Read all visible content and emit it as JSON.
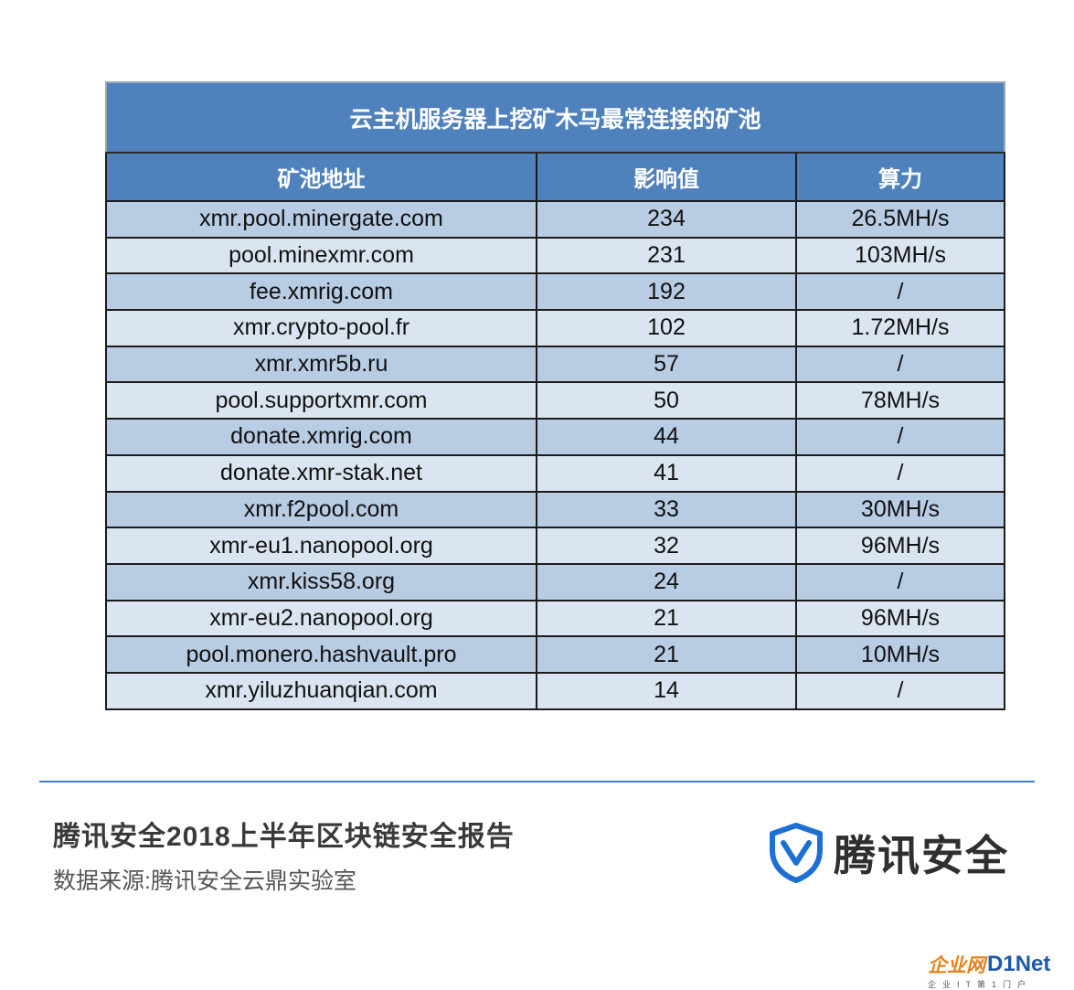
{
  "table": {
    "title": "云主机服务器上挖矿木马最常连接的矿池",
    "headers": [
      "矿池地址",
      "影响值",
      "算力"
    ],
    "rows": [
      [
        "xmr.pool.minergate.com",
        "234",
        "26.5MH/s"
      ],
      [
        "pool.minexmr.com",
        "231",
        "103MH/s"
      ],
      [
        "fee.xmrig.com",
        "192",
        "/"
      ],
      [
        "xmr.crypto-pool.fr",
        "102",
        "1.72MH/s"
      ],
      [
        "xmr.xmr5b.ru",
        "57",
        "/"
      ],
      [
        "pool.supportxmr.com",
        "50",
        "78MH/s"
      ],
      [
        "donate.xmrig.com",
        "44",
        "/"
      ],
      [
        "donate.xmr-stak.net",
        "41",
        "/"
      ],
      [
        "xmr.f2pool.com",
        "33",
        "30MH/s"
      ],
      [
        "xmr-eu1.nanopool.org",
        "32",
        "96MH/s"
      ],
      [
        "xmr.kiss58.org",
        "24",
        "/"
      ],
      [
        "xmr-eu2.nanopool.org",
        "21",
        "96MH/s"
      ],
      [
        "pool.monero.hashvault.pro",
        "21",
        "10MH/s"
      ],
      [
        "xmr.yiluzhuanqian.com",
        "14",
        "/"
      ]
    ]
  },
  "footer": {
    "report_title": "腾讯安全2018上半年区块链安全报告",
    "source": "数据来源:腾讯安全云鼎实验室",
    "brand_name": "腾讯安全",
    "brand_icon": "shield-check-icon"
  },
  "watermark": {
    "cn": "企业网",
    "d1": "D1",
    "net": "Net",
    "sub": "企业IT第1门户"
  },
  "colors": {
    "header_blue": "#4f81bd",
    "row_dark": "#b8cce4",
    "row_light": "#dbe5f1",
    "divider": "#3b7fc4",
    "brand_blue": "#1d6fd1"
  }
}
